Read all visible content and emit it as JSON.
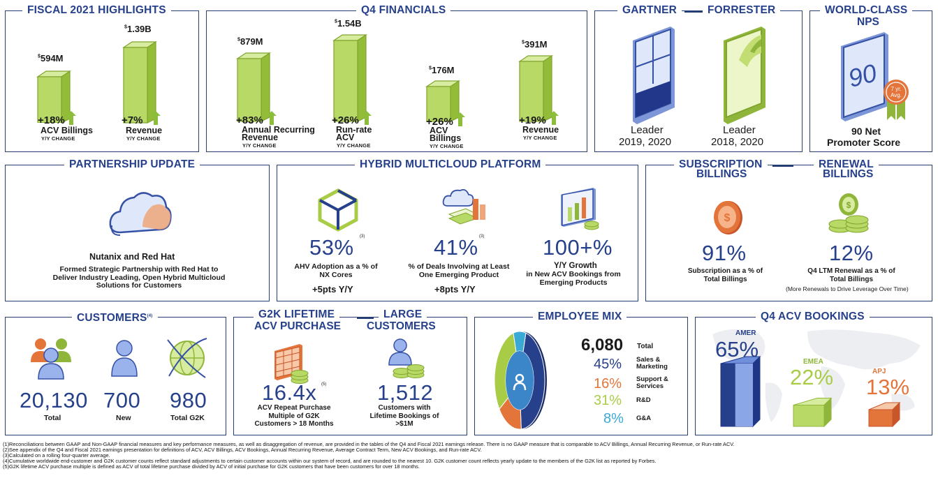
{
  "fiscal": {
    "title": "FISCAL 2021 HIGHLIGHTS",
    "items": [
      {
        "amount_prefix": "$",
        "amount": "594M",
        "change": "+18%",
        "label": "ACV Billings",
        "sub": "Y/Y CHANGE"
      },
      {
        "amount_prefix": "$",
        "amount": "1.39B",
        "change": "+7%",
        "label": "Revenue",
        "sub": "Y/Y CHANGE"
      }
    ]
  },
  "q4fin": {
    "title": "Q4 FINANCIALS",
    "items": [
      {
        "amount_prefix": "$",
        "amount": "879M",
        "change": "+83%",
        "label1": "Annual Recurring",
        "label2": "Revenue",
        "sub": "Y/Y CHANGE"
      },
      {
        "amount_prefix": "$",
        "amount": "1.54B",
        "change": "+26%",
        "label1": "Run-rate",
        "label2": "ACV",
        "sub": "Y/Y CHANGE"
      },
      {
        "amount_prefix": "$",
        "amount": "176M",
        "change": "+26%",
        "label1": "ACV",
        "label2": "Billings",
        "sub": "Y/Y CHANGE"
      },
      {
        "amount_prefix": "$",
        "amount": "391M",
        "change": "+19%",
        "label1": "Revenue",
        "label2": "",
        "sub": "Y/Y CHANGE"
      }
    ]
  },
  "analyst": {
    "gartner": "GARTNER",
    "forrester": "FORRESTER",
    "g_label": "Leader",
    "g_years": "2019, 2020",
    "f_label": "Leader",
    "f_years": "2018, 2020"
  },
  "nps": {
    "title1": "WORLD-CLASS",
    "title2": "NPS",
    "score": "90",
    "badge1": "7 yr.",
    "badge2": "Avg.",
    "label1": "90 Net",
    "label2": "Promoter Score"
  },
  "partner": {
    "title": "PARTNERSHIP UPDATE",
    "heading": "Nutanix and Red Hat",
    "desc": "Formed Strategic Partnership with Red Hat to Deliver Industry Leading, Open Hybrid Multicloud Solutions for Customers"
  },
  "hybrid": {
    "title": "HYBRID MULTICLOUD PLATFORM",
    "items": [
      {
        "value": "53%",
        "note": "(3)",
        "desc": "AHV Adoption as a % of NX Cores",
        "delta": "+5pts Y/Y"
      },
      {
        "value": "41%",
        "note": "(3)",
        "desc": "% of Deals Involving at Least One Emerging Product",
        "delta": "+8pts Y/Y"
      },
      {
        "value": "100+%",
        "note": "",
        "desc_head": "Y/Y Growth",
        "desc": "in New ACV Bookings from Emerging Products",
        "delta": ""
      }
    ]
  },
  "subs": {
    "title1": "SUBSCRIPTION",
    "title2": "BILLINGS",
    "value": "91%",
    "desc": "Subscription as a % of Total Billings"
  },
  "renew": {
    "title1": "RENEWAL",
    "title2": "BILLINGS",
    "value": "12%",
    "desc": "Q4 LTM Renewal as a % of Total Billings",
    "note": "(More Renewals to Drive Leverage Over Time)"
  },
  "customers": {
    "title": "CUSTOMERS",
    "note": "(4)",
    "items": [
      {
        "value": "20,130",
        "label": "Total"
      },
      {
        "value": "700",
        "label": "New"
      },
      {
        "value": "980",
        "label": "Total G2K"
      }
    ]
  },
  "g2k": {
    "title1": "G2K LIFETIME",
    "title2": "ACV PURCHASE",
    "value": "16.4x",
    "note": "(5)",
    "desc": "ACV Repeat Purchase Multiple of G2K Customers > 18 Months"
  },
  "large": {
    "title1": "LARGE",
    "title2": "CUSTOMERS",
    "value": "1,512",
    "desc": "Customers with Lifetime Bookings of >$1M"
  },
  "employee": {
    "title": "EMPLOYEE MIX",
    "total": "6,080",
    "total_label": "Total",
    "rows": [
      {
        "pct": "45%",
        "label": "Sales & Marketing",
        "color": "#26408b",
        "share": 45
      },
      {
        "pct": "16%",
        "label": "Support & Services",
        "color": "#e3743a",
        "share": 16
      },
      {
        "pct": "31%",
        "label": "R&D",
        "color": "#a9cc46",
        "share": 31
      },
      {
        "pct": "8%",
        "label": "G&A",
        "color": "#3aa9d6",
        "share": 8
      }
    ]
  },
  "bookings": {
    "title": "Q4 ACV BOOKINGS",
    "regions": [
      {
        "name": "AMER",
        "pct": "65%",
        "color": "#26408b",
        "share": 65
      },
      {
        "name": "EMEA",
        "pct": "22%",
        "color": "#a9cc46",
        "share": 22
      },
      {
        "name": "APJ",
        "pct": "13%",
        "color": "#e3743a",
        "share": 13
      }
    ]
  },
  "footnotes": [
    "(1)Reconciliations between GAAP and Non-GAAP financial measures and key performance measures, as well as disaggregation of revenue, are provided in the tables of the Q4 and Fiscal 2021 earnings release. There is no GAAP measure that is comparable to ACV Billings, Annual Recurring Revenue, or Run-rate ACV.",
    "(2)See appendix of the Q4 and Fiscal 2021 earnings presentation for definitions of ACV, ACV Billings, ACV Bookings, Annual Recurring Revenue, Average Contract Term, New ACV Bookings, and Run-rate ACV.",
    "(3)Calculated on a rolling four-quarter average.",
    "(4)Cumulative worldwide end-customer and G2K customer counts reflect standard adjustments to certain customer accounts within our system of record, and are rounded to the nearest 10. G2K customer count reflects yearly update to the members of the G2K list as reported by Forbes.",
    "(5)G2K lifetime ACV purchase multiple is defined as ACV of total lifetime purchase divided by ACV of initial purchase for G2K customers that have been customers for over 18 months."
  ]
}
